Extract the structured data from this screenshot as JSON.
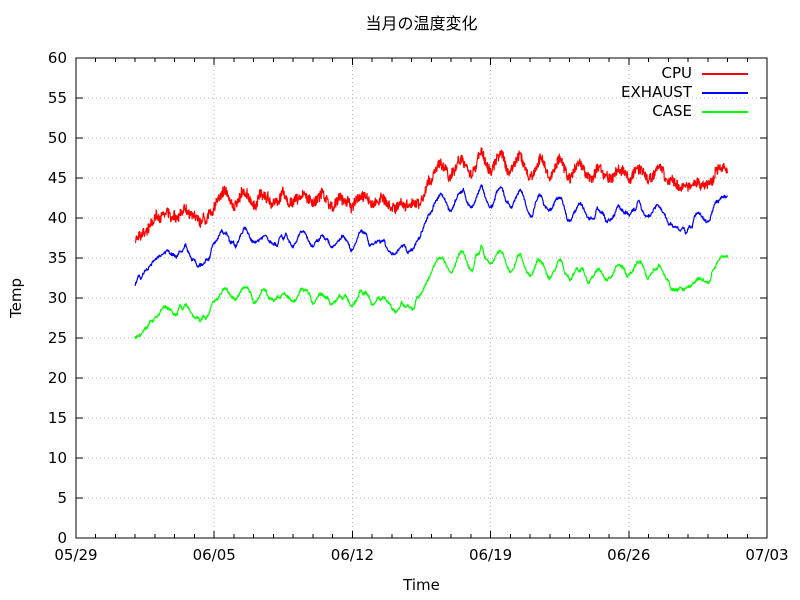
{
  "chart_data": {
    "type": "line",
    "title": "当月の温度変化",
    "xlabel": "Time",
    "ylabel": "Temp",
    "ylim": [
      0,
      60
    ],
    "y_tick_interval": 5,
    "xlim_days": [
      0,
      35
    ],
    "x_tick_days": [
      0,
      7,
      14,
      21,
      28,
      35
    ],
    "x_tick_labels": [
      "05/29",
      "06/05",
      "06/12",
      "06/19",
      "06/26",
      "07/03"
    ],
    "x_minor_tick_interval_days": 1,
    "grid": "dotted",
    "legend_position": "top-right-inside",
    "x_unit": "days_since_05_29",
    "x": [
      3.0,
      3.5,
      4.0,
      4.5,
      5.0,
      5.5,
      6.0,
      6.5,
      7.0,
      7.5,
      8.0,
      8.5,
      9.0,
      9.5,
      10.0,
      10.5,
      11.0,
      11.5,
      12.0,
      12.5,
      13.0,
      13.5,
      14.0,
      14.5,
      15.0,
      15.5,
      16.0,
      16.5,
      17.0,
      17.5,
      18.0,
      18.5,
      19.0,
      19.5,
      20.0,
      20.5,
      21.0,
      21.5,
      22.0,
      22.5,
      23.0,
      23.5,
      24.0,
      24.5,
      25.0,
      25.5,
      26.0,
      26.5,
      27.0,
      27.5,
      28.0,
      28.5,
      29.0,
      29.5,
      30.0,
      30.5,
      31.0,
      31.5,
      32.0,
      32.5,
      33.0
    ],
    "series": [
      {
        "name": "CPU",
        "color": "#ff0000",
        "noise_amplitude": 0.65,
        "wobble_amplitude": 0.45,
        "values": [
          37.4,
          38.2,
          39.8,
          40.6,
          40.0,
          41.3,
          40.2,
          39.9,
          41.5,
          43.2,
          41.8,
          43.4,
          41.9,
          43.0,
          41.7,
          42.9,
          41.8,
          43.1,
          41.9,
          42.8,
          41.6,
          42.6,
          41.5,
          42.9,
          41.6,
          42.2,
          41.3,
          41.9,
          41.5,
          42.4,
          45.0,
          46.8,
          45.2,
          47.3,
          45.6,
          48.0,
          45.9,
          48.2,
          45.8,
          47.6,
          45.3,
          47.2,
          45.1,
          47.0,
          44.9,
          46.8,
          45.0,
          46.5,
          44.8,
          46.3,
          45.1,
          46.4,
          44.9,
          46.2,
          44.6,
          44.1,
          43.6,
          44.4,
          43.9,
          46.0,
          46.4
        ]
      },
      {
        "name": "EXHAUST",
        "color": "#0000ff",
        "noise_amplitude": 0.18,
        "wobble_amplitude": 0.45,
        "values": [
          32.0,
          33.4,
          34.8,
          35.9,
          35.2,
          36.3,
          34.6,
          34.3,
          36.5,
          38.3,
          36.6,
          38.4,
          36.8,
          37.9,
          36.4,
          37.8,
          36.5,
          38.0,
          36.6,
          37.6,
          36.2,
          37.4,
          36.3,
          38.2,
          36.4,
          37.2,
          35.8,
          36.3,
          36.0,
          38.5,
          40.8,
          43.0,
          41.0,
          43.6,
          41.3,
          44.0,
          41.6,
          43.8,
          41.2,
          43.2,
          40.4,
          42.8,
          40.6,
          42.6,
          39.8,
          41.5,
          39.5,
          41.2,
          39.6,
          41.4,
          40.2,
          41.8,
          40.0,
          41.6,
          39.4,
          38.9,
          38.6,
          40.3,
          39.8,
          42.2,
          42.5
        ]
      },
      {
        "name": "CASE",
        "color": "#00ff00",
        "noise_amplitude": 0.18,
        "wobble_amplitude": 0.45,
        "values": [
          24.7,
          26.2,
          27.6,
          28.9,
          28.0,
          29.2,
          27.6,
          27.4,
          29.5,
          31.2,
          29.6,
          31.4,
          29.8,
          30.8,
          29.4,
          30.6,
          29.5,
          30.9,
          29.6,
          30.4,
          29.2,
          30.2,
          29.3,
          31.0,
          29.3,
          30.0,
          28.6,
          29.0,
          28.8,
          31.0,
          33.2,
          35.2,
          33.4,
          35.8,
          33.6,
          36.2,
          34.0,
          35.8,
          33.4,
          35.2,
          32.6,
          34.8,
          32.8,
          34.6,
          32.2,
          33.8,
          32.0,
          33.6,
          32.2,
          33.8,
          32.8,
          34.4,
          32.4,
          34.0,
          31.8,
          31.2,
          31.0,
          32.6,
          32.0,
          34.4,
          34.8
        ]
      }
    ]
  }
}
